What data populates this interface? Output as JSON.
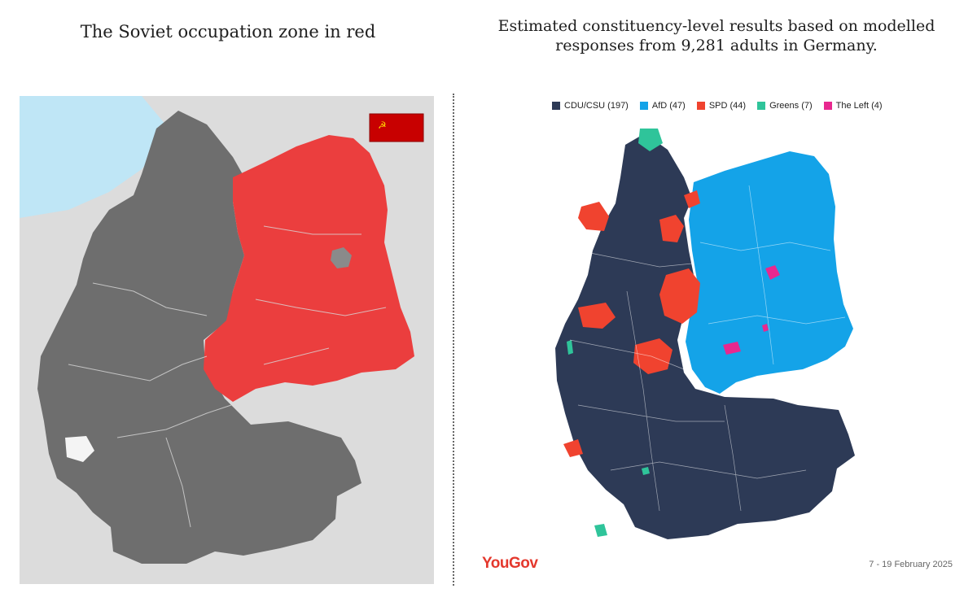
{
  "left": {
    "title": "The Soviet occupation zone in red",
    "flag_icon": "soviet-flag-icon",
    "colors": {
      "sea": "#bfe6f6",
      "neighbors": "#dcdcdc",
      "west_zones": "#6e6e6e",
      "soviet_zone": "#eb3e3e",
      "saar": "#f4f4f4"
    }
  },
  "right": {
    "title": "Estimated constituency-level results based on modelled\nresponses from 9,281 adults in Germany.",
    "legend": [
      {
        "label": "CDU/CSU (197)",
        "color": "#2d3a56"
      },
      {
        "label": "AfD (47)",
        "color": "#14a3e8"
      },
      {
        "label": "SPD (44)",
        "color": "#f0432f"
      },
      {
        "label": "Greens (7)",
        "color": "#2fc49a"
      },
      {
        "label": "The Left (4)",
        "color": "#e8288f"
      }
    ],
    "brand": "YouGov",
    "date": "7 - 19 February 2025"
  }
}
